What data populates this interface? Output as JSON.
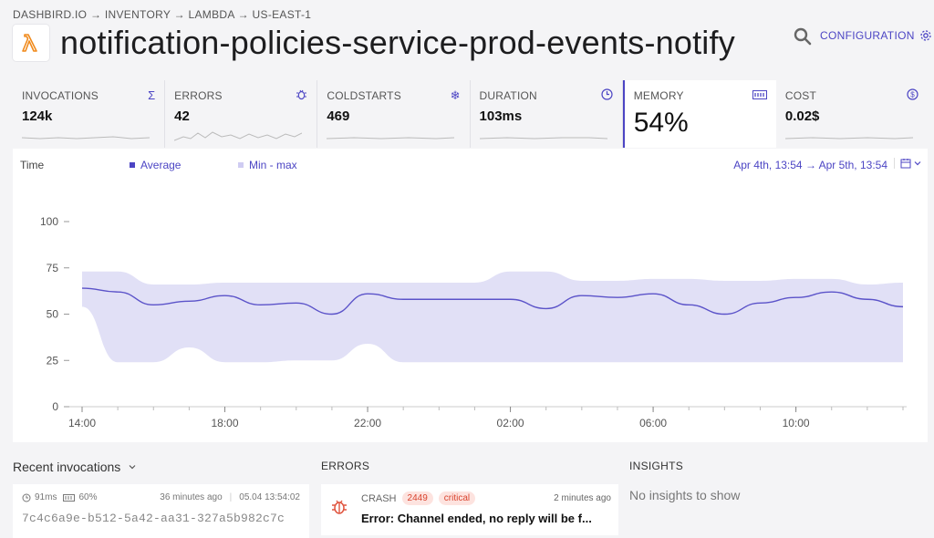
{
  "breadcrumb": "DASHBIRD.IO → INVENTORY → LAMBDA → US-EAST-1",
  "title": "notification-policies-service-prod-events-notify",
  "config_label": "CONFIGURATION",
  "metrics": [
    {
      "label": "INVOCATIONS",
      "value": "124k",
      "icon": "sigma-icon"
    },
    {
      "label": "ERRORS",
      "value": "42",
      "icon": "bug-icon"
    },
    {
      "label": "COLDSTARTS",
      "value": "469",
      "icon": "snowflake-icon"
    },
    {
      "label": "DURATION",
      "value": "103ms",
      "icon": "clock-icon"
    },
    {
      "label": "MEMORY",
      "value": "54%",
      "icon": "memory-icon",
      "active": true
    },
    {
      "label": "COST",
      "value": "0.02$",
      "icon": "dollar-icon"
    }
  ],
  "chart": {
    "time_label": "Time",
    "legend_average": "Average",
    "legend_minmax": "Min - max",
    "range": "Apr 4th, 13:54 → Apr 5th, 13:54"
  },
  "chart_data": {
    "type": "area",
    "x_ticks": [
      "14:00",
      "18:00",
      "22:00",
      "02:00",
      "06:00",
      "10:00"
    ],
    "ylim": [
      0,
      100
    ],
    "y_ticks": [
      0,
      25,
      50,
      75,
      100
    ],
    "x_hours": [
      0,
      1,
      2,
      3,
      4,
      5,
      6,
      7,
      8,
      9,
      10,
      11,
      12,
      13,
      14,
      15,
      16,
      17,
      18,
      19,
      20,
      21,
      22,
      23
    ],
    "series": [
      {
        "name": "Average",
        "values": [
          64,
          62,
          55,
          57,
          60,
          55,
          56,
          50,
          61,
          58,
          58,
          58,
          58,
          53,
          60,
          59,
          61,
          55,
          50,
          56,
          59,
          62,
          58,
          54
        ],
        "color": "#5b53c9"
      },
      {
        "name": "Min - max",
        "min": [
          54,
          24,
          24,
          32,
          24,
          24,
          25,
          25,
          34,
          24,
          24,
          24,
          24,
          24,
          24,
          24,
          24,
          24,
          24,
          24,
          24,
          24,
          24,
          24
        ],
        "max": [
          73,
          73,
          66,
          66,
          67,
          67,
          67,
          67,
          67,
          67,
          67,
          67,
          73,
          73,
          68,
          68,
          69,
          69,
          68,
          68,
          69,
          69,
          66,
          67
        ],
        "color": "#dcdaf5"
      }
    ]
  },
  "recent": {
    "title": "Recent invocations",
    "duration": "91ms",
    "memory": "60%",
    "ago": "36 minutes ago",
    "timestamp": "05.04 13:54:02",
    "id": "7c4c6a9e-b512-5a42-aa31-327a5b982c7c"
  },
  "errors": {
    "title": "ERRORS",
    "type": "CRASH",
    "count": "2449",
    "severity": "critical",
    "ago": "2 minutes ago",
    "message": "Error: Channel ended, no reply will be f..."
  },
  "insights": {
    "title": "INSIGHTS",
    "empty": "No insights to show"
  }
}
